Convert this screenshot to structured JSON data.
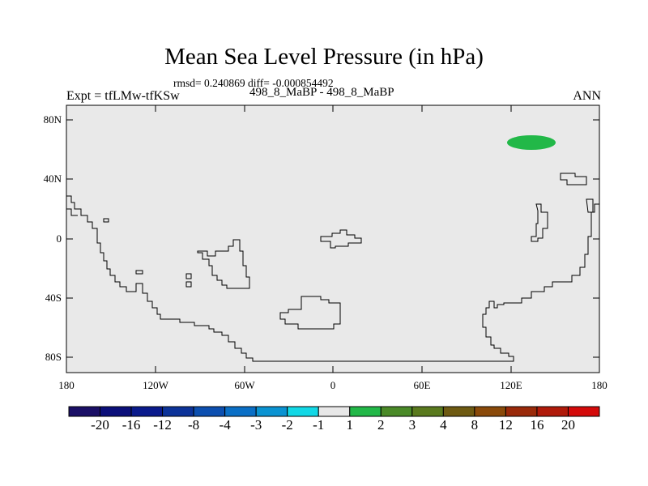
{
  "title": "Mean Sea Level Pressure (in hPa)",
  "stats_line": "rmsd= 0.240869 diff= -0.000854492",
  "case_line": "498_8_MaBP - 498_8_MaBP",
  "experiment": "Expt = tfLMw-tfKSw",
  "season": "ANN",
  "lat_ticks": [
    "80N",
    "40N",
    "0",
    "40S",
    "80S"
  ],
  "lon_ticks": [
    "180",
    "120W",
    "60W",
    "0",
    "60E",
    "120E",
    "180"
  ],
  "colorbar": {
    "labels": [
      "-20",
      "-16",
      "-12",
      "-8",
      "-4",
      "-3",
      "-2",
      "-1",
      "1",
      "2",
      "3",
      "4",
      "8",
      "12",
      "16",
      "20"
    ],
    "colors": [
      "#1a0f66",
      "#0b0f7a",
      "#0a1a8c",
      "#0c3399",
      "#0c4fb0",
      "#0a6fc6",
      "#0a93d2",
      "#12d8e6",
      "#e8e8e8",
      "#22b848",
      "#4a8a28",
      "#5a7a1e",
      "#6e5a12",
      "#8a4a0a",
      "#9a2a0a",
      "#b01a0a",
      "#d40a0a"
    ]
  },
  "map": {
    "background_color": "#e9e9e9",
    "anomaly_color": "#22b848"
  }
}
